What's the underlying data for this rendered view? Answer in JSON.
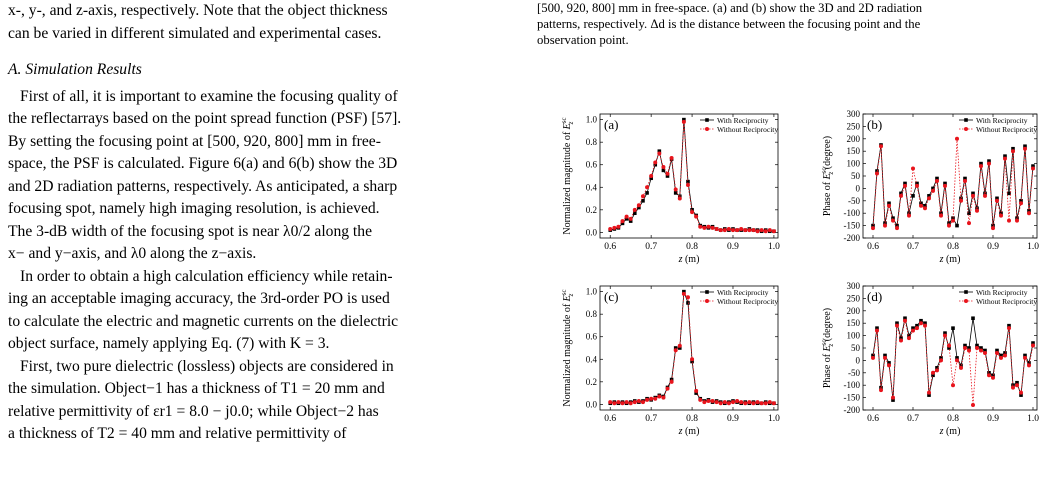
{
  "left_column": {
    "lines": [
      "x-, y-, and z-axis, respectively. Note that the object thickness",
      "can be varied in different simulated and experimental cases."
    ],
    "section_heading": "A. Simulation Results",
    "para1": [
      "First of all, it is important to examine the focusing quality of",
      "the reflectarrays based on the point spread function (PSF) [57].",
      "By setting the focusing point at [500, 920, 800] mm in free-",
      "space, the PSF is calculated. Figure 6(a) and 6(b) show the 3D",
      "and 2D radiation patterns, respectively. As anticipated, a sharp",
      "focusing spot, namely high imaging resolution, is achieved.",
      "The 3-dB width of the focusing spot is near λ0/2 along the",
      "x− and y−axis, and λ0 along the z−axis."
    ],
    "para2": [
      "In order to obtain a high calculation efficiency while retain-",
      "ing an acceptable imaging accuracy, the 3rd-order PO is used",
      "to calculate the electric and magnetic currents on the dielectric",
      "object surface, namely applying Eq. (7) with K = 3."
    ],
    "para3": [
      "First, two pure dielectric (lossless) objects are considered in",
      "the simulation. Object−1 has a thickness of T1 = 20 mm and",
      "relative permittivity of εr1 = 8.0 − j0.0; while Object−2 has",
      "a thickness of T2 = 40 mm and relative permittivity of"
    ]
  },
  "right_caption": [
    "[500, 920, 800] mm in free-space. (a) and (b) show the 3D and 2D radiation",
    "patterns, respectively. Δd is the distance between the focusing point and the",
    "observation point."
  ],
  "colors": {
    "series1": "#000000",
    "series2": "#e8141c"
  },
  "chart_data": [
    {
      "panel": "(a)",
      "type": "line",
      "xlabel": "z (m)",
      "ylabel": "Normalized magnitude of E_z^sc",
      "xlim": [
        0.575,
        1.01
      ],
      "ylim": [
        -0.05,
        1.05
      ],
      "xticks": [
        "0.6",
        "0.7",
        "0.8",
        "0.9",
        "1.0"
      ],
      "xtick_values": [
        0.6,
        0.7,
        0.8,
        0.9,
        1.0
      ],
      "yticks": [
        "0.0",
        "0.2",
        "0.4",
        "0.6",
        "0.8",
        "1.0"
      ],
      "ytick_values": [
        0,
        0.2,
        0.4,
        0.6,
        0.8,
        1.0
      ],
      "legend": "top-right",
      "series": [
        {
          "name": "With Reciprocity",
          "x": [
            0.6,
            0.61,
            0.62,
            0.63,
            0.64,
            0.65,
            0.66,
            0.67,
            0.68,
            0.69,
            0.7,
            0.71,
            0.72,
            0.73,
            0.74,
            0.75,
            0.76,
            0.77,
            0.78,
            0.79,
            0.8,
            0.81,
            0.82,
            0.83,
            0.84,
            0.85,
            0.86,
            0.87,
            0.88,
            0.89,
            0.9,
            0.91,
            0.92,
            0.93,
            0.94,
            0.95,
            0.96,
            0.97,
            0.98,
            0.99,
            1.0
          ],
          "values": [
            0.02,
            0.03,
            0.04,
            0.08,
            0.12,
            0.1,
            0.17,
            0.22,
            0.28,
            0.35,
            0.48,
            0.6,
            0.72,
            0.55,
            0.5,
            0.65,
            0.35,
            0.32,
            1.0,
            0.45,
            0.2,
            0.15,
            0.06,
            0.05,
            0.04,
            0.05,
            0.03,
            0.02,
            0.03,
            0.02,
            0.03,
            0.02,
            0.02,
            0.02,
            0.03,
            0.02,
            0.02,
            0.01,
            0.02,
            0.01,
            0.01
          ]
        },
        {
          "name": "Without Reciprocity",
          "x": [
            0.6,
            0.61,
            0.62,
            0.63,
            0.64,
            0.65,
            0.66,
            0.67,
            0.68,
            0.69,
            0.7,
            0.71,
            0.72,
            0.73,
            0.74,
            0.75,
            0.76,
            0.77,
            0.78,
            0.79,
            0.8,
            0.81,
            0.82,
            0.83,
            0.84,
            0.85,
            0.86,
            0.87,
            0.88,
            0.89,
            0.9,
            0.91,
            0.92,
            0.93,
            0.94,
            0.95,
            0.96,
            0.97,
            0.98,
            0.99,
            1.0
          ],
          "values": [
            0.03,
            0.04,
            0.05,
            0.1,
            0.14,
            0.12,
            0.2,
            0.24,
            0.32,
            0.4,
            0.5,
            0.62,
            0.7,
            0.58,
            0.52,
            0.66,
            0.38,
            0.3,
            0.98,
            0.42,
            0.18,
            0.14,
            0.05,
            0.04,
            0.05,
            0.04,
            0.03,
            0.02,
            0.02,
            0.03,
            0.02,
            0.02,
            0.03,
            0.02,
            0.02,
            0.02,
            0.01,
            0.02,
            0.01,
            0.02,
            0.01
          ]
        }
      ]
    },
    {
      "panel": "(b)",
      "type": "line",
      "xlabel": "z (m)",
      "ylabel": "Phase of E_z^sc (degree)",
      "xlim": [
        0.575,
        1.01
      ],
      "ylim": [
        -200,
        300
      ],
      "xticks": [
        "0.6",
        "0.7",
        "0.8",
        "0.9",
        "1.0"
      ],
      "xtick_values": [
        0.6,
        0.7,
        0.8,
        0.9,
        1.0
      ],
      "yticks": [
        "-200",
        "-150",
        "-100",
        "-50",
        "0",
        "50",
        "100",
        "150",
        "200",
        "250",
        "300"
      ],
      "ytick_values": [
        -200,
        -150,
        -100,
        -50,
        0,
        50,
        100,
        150,
        200,
        250,
        300
      ],
      "legend": "top-right",
      "series": [
        {
          "name": "With Reciprocity",
          "x": [
            0.6,
            0.61,
            0.62,
            0.63,
            0.64,
            0.65,
            0.66,
            0.67,
            0.68,
            0.69,
            0.7,
            0.71,
            0.72,
            0.73,
            0.74,
            0.75,
            0.76,
            0.77,
            0.78,
            0.79,
            0.8,
            0.81,
            0.82,
            0.83,
            0.84,
            0.85,
            0.86,
            0.87,
            0.88,
            0.89,
            0.9,
            0.91,
            0.92,
            0.93,
            0.94,
            0.95,
            0.96,
            0.97,
            0.98,
            0.99,
            1.0
          ],
          "values": [
            -150,
            70,
            175,
            -140,
            -60,
            -120,
            -150,
            -20,
            20,
            -100,
            -30,
            20,
            -60,
            -70,
            -30,
            0,
            40,
            -100,
            20,
            -140,
            -120,
            -150,
            -40,
            40,
            -100,
            -20,
            -80,
            100,
            -20,
            110,
            -150,
            -40,
            -100,
            130,
            -20,
            160,
            -120,
            -50,
            170,
            -90,
            90
          ]
        },
        {
          "name": "Without Reciprocity",
          "x": [
            0.6,
            0.61,
            0.62,
            0.63,
            0.64,
            0.65,
            0.66,
            0.67,
            0.68,
            0.69,
            0.7,
            0.71,
            0.72,
            0.73,
            0.74,
            0.75,
            0.76,
            0.77,
            0.78,
            0.79,
            0.8,
            0.81,
            0.82,
            0.83,
            0.84,
            0.85,
            0.86,
            0.87,
            0.88,
            0.89,
            0.9,
            0.91,
            0.92,
            0.93,
            0.94,
            0.95,
            0.96,
            0.97,
            0.98,
            0.99,
            1.0
          ],
          "values": [
            -160,
            60,
            170,
            -150,
            -70,
            -130,
            -160,
            -30,
            10,
            -110,
            80,
            10,
            -70,
            -80,
            -40,
            -10,
            30,
            -110,
            10,
            -150,
            -130,
            200,
            -50,
            30,
            -140,
            -30,
            -90,
            90,
            -30,
            100,
            -160,
            -50,
            -110,
            120,
            -130,
            150,
            -130,
            -60,
            160,
            -100,
            80
          ]
        }
      ]
    },
    {
      "panel": "(c)",
      "type": "line",
      "xlabel": "z (m)",
      "ylabel": "Normalized magnitude of E_z^sc",
      "xlim": [
        0.575,
        1.01
      ],
      "ylim": [
        -0.05,
        1.05
      ],
      "xticks": [
        "0.6",
        "0.7",
        "0.8",
        "0.9",
        "1.0"
      ],
      "xtick_values": [
        0.6,
        0.7,
        0.8,
        0.9,
        1.0
      ],
      "yticks": [
        "0.0",
        "0.2",
        "0.4",
        "0.6",
        "0.8",
        "1.0"
      ],
      "ytick_values": [
        0,
        0.2,
        0.4,
        0.6,
        0.8,
        1.0
      ],
      "legend": "top-right",
      "series": [
        {
          "name": "With Reciprocity",
          "x": [
            0.6,
            0.61,
            0.62,
            0.63,
            0.64,
            0.65,
            0.66,
            0.67,
            0.68,
            0.69,
            0.7,
            0.71,
            0.72,
            0.73,
            0.74,
            0.75,
            0.76,
            0.77,
            0.78,
            0.79,
            0.8,
            0.81,
            0.82,
            0.83,
            0.84,
            0.85,
            0.86,
            0.87,
            0.88,
            0.89,
            0.9,
            0.91,
            0.92,
            0.93,
            0.94,
            0.95,
            0.96,
            0.97,
            0.98,
            0.99,
            1.0
          ],
          "values": [
            0.01,
            0.02,
            0.01,
            0.02,
            0.01,
            0.02,
            0.03,
            0.02,
            0.03,
            0.05,
            0.04,
            0.06,
            0.08,
            0.07,
            0.15,
            0.22,
            0.5,
            0.5,
            1.0,
            0.9,
            0.38,
            0.1,
            0.05,
            0.03,
            0.04,
            0.02,
            0.03,
            0.02,
            0.01,
            0.02,
            0.03,
            0.02,
            0.01,
            0.02,
            0.01,
            0.02,
            0.01,
            0.01,
            0.02,
            0.01,
            0.01
          ]
        },
        {
          "name": "Without Reciprocity",
          "x": [
            0.6,
            0.61,
            0.62,
            0.63,
            0.64,
            0.65,
            0.66,
            0.67,
            0.68,
            0.69,
            0.7,
            0.71,
            0.72,
            0.73,
            0.74,
            0.75,
            0.76,
            0.77,
            0.78,
            0.79,
            0.8,
            0.81,
            0.82,
            0.83,
            0.84,
            0.85,
            0.86,
            0.87,
            0.88,
            0.89,
            0.9,
            0.91,
            0.92,
            0.93,
            0.94,
            0.95,
            0.96,
            0.97,
            0.98,
            0.99,
            1.0
          ],
          "values": [
            0.02,
            0.01,
            0.02,
            0.01,
            0.02,
            0.01,
            0.02,
            0.03,
            0.02,
            0.04,
            0.05,
            0.05,
            0.07,
            0.06,
            0.14,
            0.2,
            0.48,
            0.52,
            0.98,
            0.95,
            0.4,
            0.12,
            0.04,
            0.02,
            0.03,
            0.03,
            0.02,
            0.01,
            0.02,
            0.01,
            0.02,
            0.03,
            0.02,
            0.01,
            0.02,
            0.01,
            0.02,
            0.01,
            0.01,
            0.02,
            0.01
          ]
        }
      ]
    },
    {
      "panel": "(d)",
      "type": "line",
      "xlabel": "z (m)",
      "ylabel": "Phase of E_z^sc (degree)",
      "xlim": [
        0.575,
        1.01
      ],
      "ylim": [
        -200,
        300
      ],
      "xticks": [
        "0.6",
        "0.7",
        "0.8",
        "0.9",
        "1.0"
      ],
      "xtick_values": [
        0.6,
        0.7,
        0.8,
        0.9,
        1.0
      ],
      "yticks": [
        "-200",
        "-150",
        "-100",
        "-50",
        "0",
        "50",
        "100",
        "150",
        "200",
        "250",
        "300"
      ],
      "ytick_values": [
        -200,
        -150,
        -100,
        -50,
        0,
        50,
        100,
        150,
        200,
        250,
        300
      ],
      "legend": "top-right",
      "series": [
        {
          "name": "With Reciprocity",
          "x": [
            0.6,
            0.61,
            0.62,
            0.63,
            0.64,
            0.65,
            0.66,
            0.67,
            0.68,
            0.69,
            0.7,
            0.71,
            0.72,
            0.73,
            0.74,
            0.75,
            0.76,
            0.77,
            0.78,
            0.79,
            0.8,
            0.81,
            0.82,
            0.83,
            0.84,
            0.85,
            0.86,
            0.87,
            0.88,
            0.89,
            0.9,
            0.91,
            0.92,
            0.93,
            0.94,
            0.95,
            0.96,
            0.97,
            0.98,
            0.99,
            1.0
          ],
          "values": [
            20,
            130,
            -110,
            20,
            -10,
            -160,
            150,
            90,
            170,
            100,
            130,
            140,
            160,
            150,
            -140,
            -60,
            -30,
            10,
            110,
            50,
            130,
            10,
            -20,
            60,
            50,
            170,
            60,
            50,
            40,
            -50,
            -60,
            40,
            20,
            30,
            140,
            -100,
            -90,
            -140,
            20,
            -10,
            70
          ]
        },
        {
          "name": "Without Reciprocity",
          "x": [
            0.6,
            0.61,
            0.62,
            0.63,
            0.64,
            0.65,
            0.66,
            0.67,
            0.68,
            0.69,
            0.7,
            0.71,
            0.72,
            0.73,
            0.74,
            0.75,
            0.76,
            0.77,
            0.78,
            0.79,
            0.8,
            0.81,
            0.82,
            0.83,
            0.84,
            0.85,
            0.86,
            0.87,
            0.88,
            0.89,
            0.9,
            0.91,
            0.92,
            0.93,
            0.94,
            0.95,
            0.96,
            0.97,
            0.98,
            0.99,
            1.0
          ],
          "values": [
            10,
            120,
            -120,
            10,
            -20,
            -150,
            140,
            80,
            160,
            90,
            120,
            130,
            150,
            140,
            -130,
            -50,
            -40,
            0,
            100,
            60,
            -100,
            0,
            -30,
            50,
            40,
            -180,
            50,
            40,
            30,
            -60,
            -70,
            30,
            10,
            20,
            130,
            -110,
            -100,
            -130,
            10,
            -20,
            60
          ]
        }
      ]
    }
  ]
}
